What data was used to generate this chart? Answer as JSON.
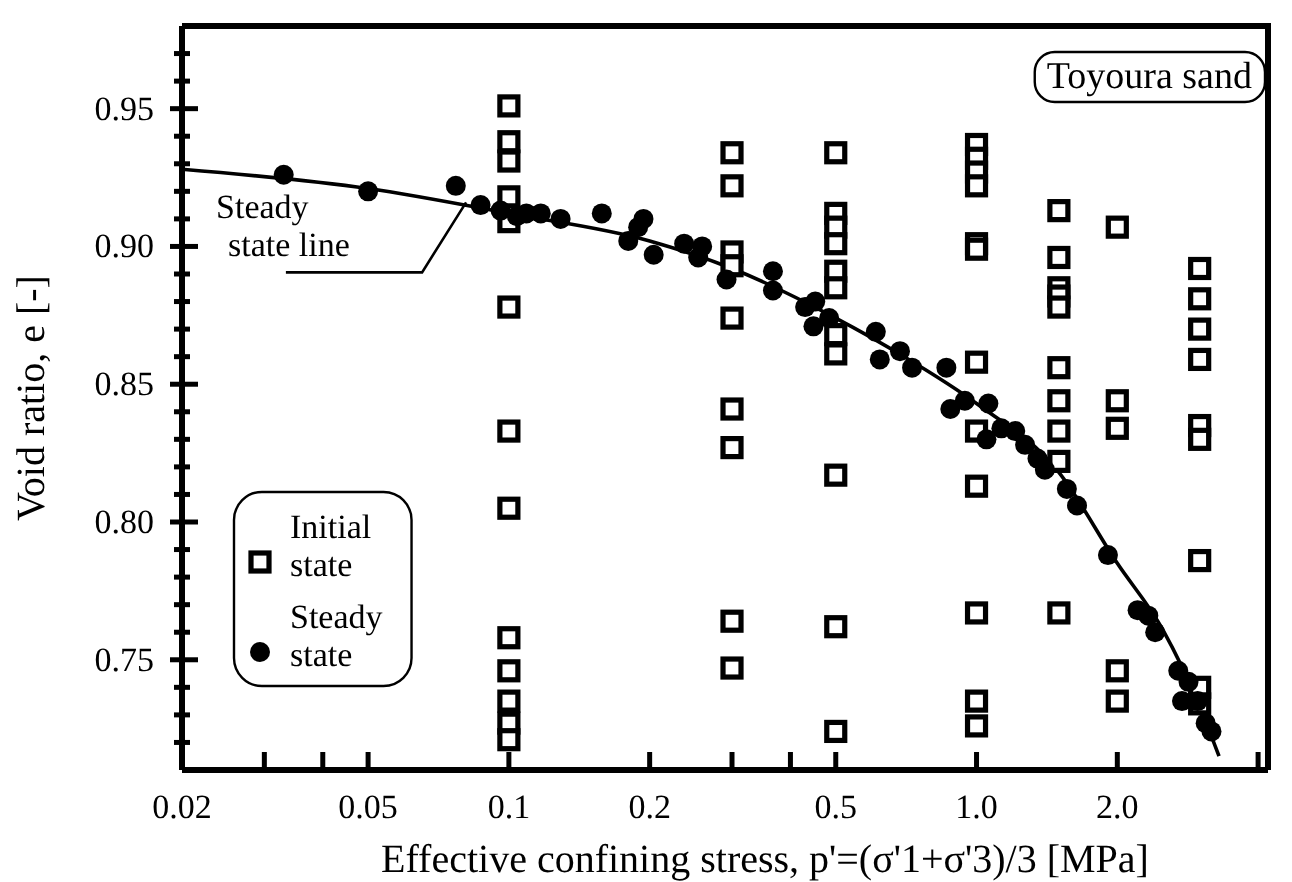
{
  "chart_data": {
    "type": "scatter",
    "xlabel": "Effective confining stress, p'=(σ'1+σ'3)/3 [MPa]",
    "ylabel": "Void ratio, e [-]",
    "log": "x",
    "grid": false,
    "legend": "bottom left",
    "xlim": [
      0.02,
      4.2
    ],
    "ylim": [
      0.71,
      0.98
    ],
    "xticks": [
      0.02,
      {
        "value": 0.03,
        "label": null
      },
      {
        "value": 0.04,
        "label": null
      },
      0.05,
      0.1,
      0.2,
      {
        "value": 0.3,
        "label": null
      },
      {
        "value": 0.4,
        "label": null
      },
      0.5,
      {
        "value": 1,
        "label": "1.0"
      },
      {
        "value": 2,
        "label": "2.0"
      },
      {
        "value": 4,
        "label": null
      }
    ],
    "yticks": [
      {
        "value": 0.72,
        "label": null
      },
      {
        "value": 0.73,
        "label": null
      },
      {
        "value": 0.74,
        "label": null
      },
      0.75,
      {
        "value": 0.76,
        "label": null
      },
      {
        "value": 0.77,
        "label": null
      },
      {
        "value": 0.78,
        "label": null
      },
      {
        "value": 0.79,
        "label": null
      },
      {
        "value": 0.8,
        "label": "0.80"
      },
      {
        "value": 0.81,
        "label": null
      },
      {
        "value": 0.82,
        "label": null
      },
      {
        "value": 0.83,
        "label": null
      },
      {
        "value": 0.84,
        "label": null
      },
      0.85,
      {
        "value": 0.86,
        "label": null
      },
      {
        "value": 0.87,
        "label": null
      },
      {
        "value": 0.88,
        "label": null
      },
      {
        "value": 0.89,
        "label": null
      },
      {
        "value": 0.9,
        "label": "0.90"
      },
      {
        "value": 0.91,
        "label": null
      },
      {
        "value": 0.92,
        "label": null
      },
      {
        "value": 0.93,
        "label": null
      },
      {
        "value": 0.94,
        "label": null
      },
      0.95,
      {
        "value": 0.96,
        "label": null
      },
      {
        "value": 0.97,
        "label": null
      }
    ],
    "annotations": [
      "Toyoura sand",
      {
        "text": "Steady state line",
        "x": 0.081,
        "y": 0.916
      }
    ],
    "series": [
      {
        "name": "Initial state",
        "marker": "square",
        "color": "#000000",
        "x": [
          0.1,
          0.1,
          0.1,
          0.1,
          0.1,
          0.1,
          0.1,
          0.1,
          0.1,
          0.1,
          0.1,
          0.1,
          0.1,
          0.3,
          0.3,
          0.3,
          0.3,
          0.3,
          0.3,
          0.3,
          0.3,
          0.3,
          0.5,
          0.5,
          0.5,
          0.5,
          0.5,
          0.5,
          0.5,
          0.5,
          0.5,
          0.5,
          0.5,
          1,
          1,
          1,
          1,
          1,
          1,
          1,
          1,
          1,
          1,
          1,
          1,
          1.5,
          1.5,
          1.5,
          1.5,
          1.5,
          1.5,
          1.5,
          1.5,
          1.5,
          1.5,
          2,
          2,
          2,
          2,
          2,
          3,
          3,
          3,
          3,
          3,
          3,
          3,
          3,
          3
        ],
        "values": [
          0.951,
          0.938,
          0.931,
          0.918,
          0.909,
          0.878,
          0.833,
          0.805,
          0.758,
          0.746,
          0.735,
          0.727,
          0.721,
          0.934,
          0.922,
          0.898,
          0.893,
          0.874,
          0.841,
          0.827,
          0.764,
          0.747,
          0.934,
          0.912,
          0.907,
          0.901,
          0.891,
          0.885,
          0.868,
          0.861,
          0.817,
          0.762,
          0.724,
          0.937,
          0.932,
          0.927,
          0.922,
          0.901,
          0.899,
          0.858,
          0.833,
          0.813,
          0.767,
          0.735,
          0.726,
          0.913,
          0.896,
          0.885,
          0.882,
          0.878,
          0.856,
          0.844,
          0.833,
          0.822,
          0.767,
          0.907,
          0.844,
          0.834,
          0.746,
          0.735,
          0.892,
          0.881,
          0.87,
          0.859,
          0.835,
          0.83,
          0.786,
          0.74,
          0.734
        ]
      },
      {
        "name": "Steady state",
        "marker": "circle",
        "color": "#000000",
        "x": [
          0.033,
          0.05,
          0.077,
          0.087,
          0.096,
          0.104,
          0.109,
          0.117,
          0.129,
          0.158,
          0.18,
          0.189,
          0.194,
          0.204,
          0.237,
          0.259,
          0.254,
          0.292,
          0.367,
          0.367,
          0.43,
          0.452,
          0.448,
          0.484,
          0.609,
          0.621,
          0.686,
          0.728,
          0.862,
          0.879,
          0.944,
          1.06,
          1.05,
          1.13,
          1.21,
          1.27,
          1.35,
          1.4,
          1.56,
          1.64,
          1.91,
          2.21,
          2.33,
          2.41,
          2.7,
          2.84,
          2.75,
          2.97,
          3.09,
          3.18
        ],
        "values": [
          0.926,
          0.92,
          0.922,
          0.915,
          0.913,
          0.911,
          0.912,
          0.912,
          0.91,
          0.912,
          0.902,
          0.907,
          0.91,
          0.897,
          0.901,
          0.9,
          0.896,
          0.888,
          0.891,
          0.884,
          0.878,
          0.88,
          0.871,
          0.874,
          0.869,
          0.859,
          0.862,
          0.856,
          0.856,
          0.841,
          0.844,
          0.843,
          0.83,
          0.834,
          0.833,
          0.828,
          0.823,
          0.819,
          0.812,
          0.806,
          0.788,
          0.768,
          0.766,
          0.76,
          0.746,
          0.742,
          0.735,
          0.735,
          0.727,
          0.724
        ]
      },
      {
        "type": "line",
        "marker": "none",
        "line_style": "solid",
        "color": "#000000",
        "x": [
          0.02,
          0.05,
          0.1,
          0.2,
          0.3,
          0.5,
          0.7,
          1,
          1.5,
          2,
          2.5,
          3,
          3.3
        ],
        "values": [
          0.928,
          0.921,
          0.912,
          0.902,
          0.892,
          0.874,
          0.86,
          0.843,
          0.818,
          0.785,
          0.761,
          0.733,
          0.715
        ]
      }
    ]
  }
}
